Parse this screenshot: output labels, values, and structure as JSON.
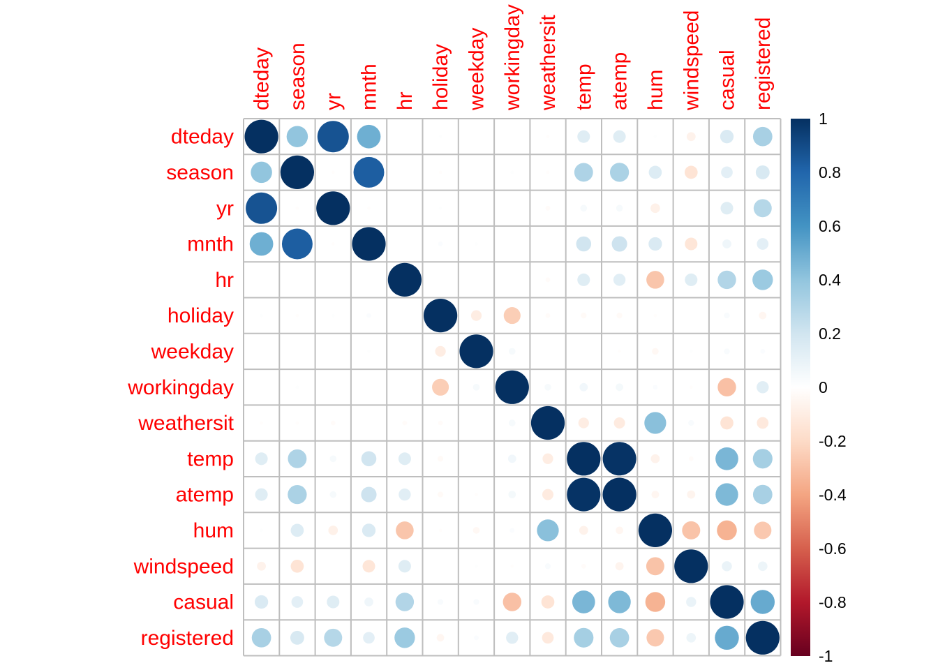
{
  "chart_data": {
    "type": "heatmap",
    "variables": [
      "dteday",
      "season",
      "yr",
      "mnth",
      "hr",
      "holiday",
      "weekday",
      "workingday",
      "weathersit",
      "temp",
      "atemp",
      "hum",
      "windspeed",
      "casual",
      "registered"
    ],
    "matrix": [
      [
        1.0,
        0.4,
        0.87,
        0.49,
        0.0,
        0.01,
        0.0,
        0.0,
        -0.01,
        0.14,
        0.14,
        0.01,
        -0.07,
        0.16,
        0.33
      ],
      [
        0.4,
        1.0,
        -0.01,
        0.83,
        0.0,
        -0.01,
        0.0,
        0.01,
        -0.01,
        0.31,
        0.32,
        0.15,
        -0.15,
        0.12,
        0.17
      ],
      [
        0.87,
        -0.01,
        1.0,
        -0.01,
        0.0,
        0.01,
        0.0,
        0.0,
        -0.02,
        0.04,
        0.04,
        -0.08,
        0.0,
        0.14,
        0.29
      ],
      [
        0.49,
        0.83,
        -0.01,
        1.0,
        0.0,
        0.02,
        0.01,
        0.0,
        0.0,
        0.2,
        0.21,
        0.16,
        -0.14,
        0.07,
        0.12
      ],
      [
        0.0,
        0.0,
        0.0,
        0.0,
        1.0,
        0.0,
        0.0,
        0.0,
        -0.02,
        0.14,
        0.13,
        -0.28,
        0.14,
        0.3,
        0.37
      ],
      [
        0.01,
        -0.01,
        0.01,
        0.02,
        0.0,
        1.0,
        -0.1,
        -0.25,
        -0.02,
        -0.03,
        -0.03,
        -0.01,
        0.0,
        0.03,
        -0.05
      ],
      [
        0.0,
        0.0,
        0.0,
        0.01,
        0.0,
        -0.1,
        1.0,
        0.04,
        0.0,
        0.0,
        -0.01,
        -0.04,
        0.01,
        0.03,
        0.02
      ],
      [
        0.0,
        0.01,
        0.0,
        0.0,
        0.0,
        -0.25,
        0.04,
        1.0,
        0.04,
        0.06,
        0.05,
        0.02,
        -0.01,
        -0.3,
        0.13
      ],
      [
        -0.01,
        -0.01,
        -0.02,
        0.0,
        -0.02,
        -0.02,
        0.0,
        0.04,
        1.0,
        -0.1,
        -0.11,
        0.42,
        0.03,
        -0.15,
        -0.12
      ],
      [
        0.14,
        0.31,
        0.04,
        0.2,
        0.14,
        -0.03,
        0.0,
        0.06,
        -0.1,
        1.0,
        0.99,
        -0.07,
        -0.02,
        0.46,
        0.34
      ],
      [
        0.14,
        0.32,
        0.04,
        0.21,
        0.13,
        -0.03,
        -0.01,
        0.05,
        -0.11,
        0.99,
        1.0,
        -0.05,
        -0.06,
        0.45,
        0.33
      ],
      [
        0.01,
        0.15,
        -0.08,
        0.16,
        -0.28,
        -0.01,
        -0.04,
        0.02,
        0.42,
        -0.07,
        -0.05,
        1.0,
        -0.29,
        -0.35,
        -0.27
      ],
      [
        -0.07,
        -0.15,
        0.0,
        -0.14,
        0.14,
        0.0,
        0.01,
        -0.01,
        0.03,
        -0.02,
        -0.06,
        -0.29,
        1.0,
        0.09,
        0.08
      ],
      [
        0.16,
        0.12,
        0.14,
        0.07,
        0.3,
        0.03,
        0.03,
        -0.3,
        -0.15,
        0.46,
        0.45,
        -0.35,
        0.09,
        1.0,
        0.51
      ],
      [
        0.33,
        0.17,
        0.29,
        0.12,
        0.37,
        -0.05,
        0.02,
        0.13,
        -0.12,
        0.34,
        0.33,
        -0.27,
        0.08,
        0.51,
        1.0
      ]
    ],
    "colorbar": {
      "ticks": [
        "1",
        "0.8",
        "0.6",
        "0.4",
        "0.2",
        "0",
        "-0.2",
        "-0.4",
        "-0.6",
        "-0.8",
        "-1"
      ],
      "range": [
        -1,
        1
      ]
    },
    "colors": {
      "label": "#ff0000",
      "grid": "#bebebe",
      "palette": [
        "#67001f",
        "#b2182b",
        "#d6604d",
        "#f4a582",
        "#fddbc7",
        "#ffffff",
        "#d1e5f0",
        "#92c5de",
        "#4393c3",
        "#2166ac",
        "#053061"
      ]
    }
  }
}
